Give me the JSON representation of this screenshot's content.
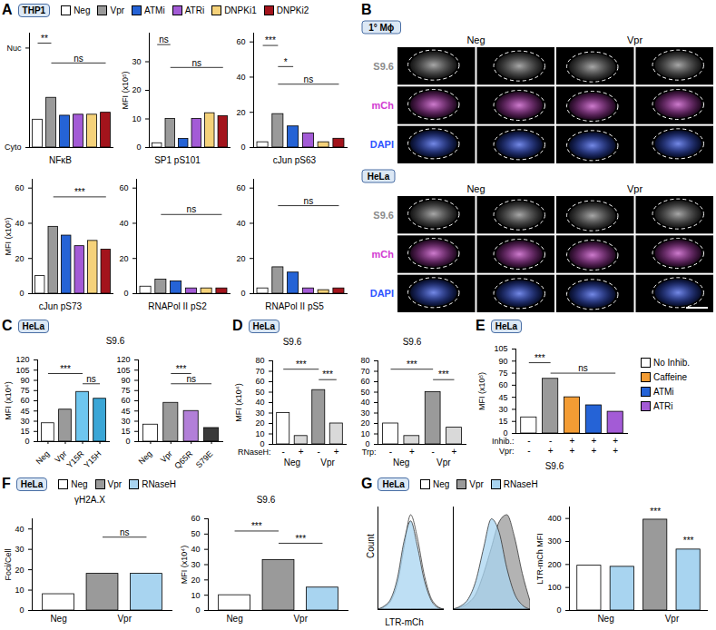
{
  "chart_data": [
    {
      "panel": "A",
      "type": "bar",
      "tag": "THP1",
      "legend": "top",
      "legend_items": [
        {
          "name": "Neg",
          "color": "#ffffff"
        },
        {
          "name": "Vpr",
          "color": "#9a9a9a"
        },
        {
          "name": "ATMi",
          "color": "#2563d6"
        },
        {
          "name": "ATRi",
          "color": "#a35bd6"
        },
        {
          "name": "DNPKi1",
          "color": "#f5d27a"
        },
        {
          "name": "DNPKi2",
          "color": "#a3141c"
        }
      ],
      "charts": [
        {
          "type": "bar",
          "xlabel": "NFκB",
          "tick_labels": "y",
          "values": [
            0.28,
            0.5,
            0.32,
            0.33,
            0.33,
            0.35
          ],
          "ylim": [
            0,
            1.15
          ],
          "yticks": [
            {
              "value": 0,
              "label": "Cyto"
            },
            {
              "value": 1,
              "label": "Nuc"
            }
          ],
          "annotations": [
            {
              "text": "**",
              "y": 1.05,
              "from": 0,
              "to": 1
            },
            {
              "text": "ns",
              "y": 0.85,
              "from": 1,
              "to": 5
            }
          ]
        },
        {
          "type": "bar",
          "xlabel": "SP1 pS101",
          "ylabel": "MFI (x10⁵)",
          "tick_labels": "y",
          "values": [
            1.5,
            10,
            3,
            10,
            12,
            11
          ],
          "ylim": [
            0,
            40
          ],
          "yticks": [
            0,
            10,
            20,
            30
          ],
          "annotations": [
            {
              "text": "ns",
              "y": 36,
              "from": 0,
              "to": 1
            },
            {
              "text": "ns",
              "y": 28,
              "from": 1,
              "to": 5
            }
          ]
        },
        {
          "type": "bar",
          "xlabel": "cJun pS63",
          "tick_labels": "y",
          "values": [
            3,
            19,
            12,
            8,
            3,
            5
          ],
          "ylim": [
            0,
            65
          ],
          "yticks": [
            0,
            20,
            40,
            60
          ],
          "annotations": [
            {
              "text": "***",
              "y": 58,
              "from": 0,
              "to": 1
            },
            {
              "text": "*",
              "y": 46,
              "from": 1,
              "to": 2
            },
            {
              "text": "ns",
              "y": 36,
              "from": 1,
              "to": 5
            }
          ]
        },
        {
          "type": "bar",
          "xlabel": "cJun pS73",
          "ylabel": "MFI (x10⁵)",
          "tick_labels": "y",
          "values": [
            10,
            38,
            33,
            27,
            30,
            25
          ],
          "ylim": [
            0,
            65
          ],
          "yticks": [
            0,
            20,
            40,
            60
          ],
          "annotations": [
            {
              "text": "***",
              "y": 55,
              "from": 1,
              "to": 5
            }
          ]
        },
        {
          "type": "bar",
          "xlabel": "RNAPol II pS2",
          "tick_labels": "y",
          "values": [
            4,
            8,
            7,
            3,
            3,
            3
          ],
          "ylim": [
            0,
            65
          ],
          "yticks": [
            0,
            20,
            40,
            60
          ],
          "annotations": [
            {
              "text": "ns",
              "y": 45,
              "from": 1,
              "to": 5
            }
          ]
        },
        {
          "type": "bar",
          "xlabel": "RNAPol II pS5",
          "tick_labels": "y",
          "values": [
            3,
            15,
            12,
            3,
            2,
            3
          ],
          "ylim": [
            0,
            65
          ],
          "yticks": [
            0,
            20,
            40,
            60
          ],
          "annotations": [
            {
              "text": "ns",
              "y": 50,
              "from": 1,
              "to": 5
            }
          ]
        }
      ]
    },
    {
      "panel": "B",
      "type": "image",
      "blocks": [
        {
          "tag": "1° Mϕ",
          "columns": [
            "Neg",
            "Vpr"
          ],
          "rows": [
            "S9.6",
            "mCh",
            "DAPI"
          ],
          "colors": [
            "#8c8c8c",
            "#d23cd2",
            "#2f55ff"
          ]
        },
        {
          "tag": "HeLa",
          "columns": [
            "Neg",
            "Vpr"
          ],
          "rows": [
            "S9.6",
            "mCh",
            "DAPI"
          ],
          "colors": [
            "#8c8c8c",
            "#d23cd2",
            "#2f55ff"
          ]
        }
      ]
    },
    {
      "panel": "C",
      "type": "bar",
      "tag": "HeLa",
      "title": "S9.6",
      "charts": [
        {
          "type": "bar",
          "ylabel": "MFI (x10⁴)",
          "categories": [
            "Neg",
            "Vpr",
            "Y15R",
            "Y15H"
          ],
          "colors": [
            "#ffffff",
            "#9a9a9a",
            "#6ec6ef",
            "#3aa6d6"
          ],
          "values": [
            27,
            47,
            73,
            63
          ],
          "ylim": [
            0,
            120
          ],
          "yticks": [
            0,
            15,
            30,
            45,
            60,
            75,
            90,
            105,
            120
          ],
          "annotations": [
            {
              "text": "***",
              "y": 100,
              "from": 0,
              "to": 2
            },
            {
              "text": "ns",
              "y": 85,
              "from": 2,
              "to": 3
            }
          ]
        },
        {
          "type": "bar",
          "categories": [
            "Neg",
            "Vpr",
            "Q65R",
            "S79E"
          ],
          "colors": [
            "#ffffff",
            "#9a9a9a",
            "#b27fd8",
            "#3a3a3a"
          ],
          "values": [
            25,
            57,
            45,
            20
          ],
          "ylim": [
            0,
            120
          ],
          "yticks": [
            0,
            15,
            30,
            45,
            60,
            75,
            90,
            105,
            120
          ],
          "annotations": [
            {
              "text": "***",
              "y": 100,
              "from": 1,
              "to": 2
            },
            {
              "text": "ns",
              "y": 85,
              "from": 1,
              "to": 3
            }
          ]
        }
      ]
    },
    {
      "panel": "D",
      "type": "bar",
      "tag": "HeLa",
      "charts": [
        {
          "type": "bar",
          "title": "S9.6",
          "ylabel": "MFI (x10⁴)",
          "values": [
            30,
            8,
            52,
            20
          ],
          "colors": [
            "#ffffff",
            "#d9d9d9",
            "#9a9a9a",
            "#d9d9d9"
          ],
          "ylim": [
            0,
            80
          ],
          "yticks": [
            0,
            10,
            20,
            30,
            40,
            50,
            60,
            70,
            80
          ],
          "xrows": [
            {
              "label": "RNaseH:",
              "values": [
                "-",
                "+",
                "-",
                "+"
              ]
            }
          ],
          "groups": [
            {
              "label": "Neg",
              "span": 2
            },
            {
              "label": "Vpr",
              "span": 2
            }
          ],
          "annotations": [
            {
              "text": "***",
              "y": 72,
              "from": 0,
              "to": 2
            },
            {
              "text": "***",
              "y": 62,
              "from": 2,
              "to": 3
            }
          ]
        },
        {
          "type": "bar",
          "title": "S9.6",
          "values": [
            20,
            8,
            50,
            16
          ],
          "colors": [
            "#ffffff",
            "#d9d9d9",
            "#9a9a9a",
            "#d9d9d9"
          ],
          "ylim": [
            0,
            80
          ],
          "yticks": [
            0,
            10,
            20,
            30,
            40,
            50,
            60,
            70,
            80
          ],
          "xrows": [
            {
              "label": "Trp:",
              "values": [
                "-",
                "+",
                "-",
                "+"
              ]
            }
          ],
          "groups": [
            {
              "label": "Neg",
              "span": 2
            },
            {
              "label": "Vpr",
              "span": 2
            }
          ],
          "annotations": [
            {
              "text": "***",
              "y": 72,
              "from": 0,
              "to": 2
            },
            {
              "text": "***",
              "y": 62,
              "from": 2,
              "to": 3
            }
          ]
        }
      ]
    },
    {
      "panel": "E",
      "type": "bar",
      "tag": "HeLa",
      "legend": "right",
      "legend_items": [
        {
          "name": "No Inhib.",
          "color": "#ffffff"
        },
        {
          "name": "Caffeine",
          "color": "#f39c34"
        },
        {
          "name": "ATMi",
          "color": "#2563d6"
        },
        {
          "name": "ATRi",
          "color": "#a35bd6"
        }
      ],
      "charts": [
        {
          "type": "bar",
          "xlabel": "S9.6",
          "ylabel": "MFI (x10⁵)",
          "values": [
            20,
            68,
            45,
            35,
            27
          ],
          "colors": [
            "#ffffff",
            "#9a9a9a",
            "#f39c34",
            "#2563d6",
            "#a35bd6"
          ],
          "ylim": [
            0,
            105
          ],
          "yticks": [
            0,
            15,
            30,
            45,
            60,
            75,
            90,
            105
          ],
          "xrows": [
            {
              "label": "Inhib.:",
              "values": [
                "-",
                "-",
                "+",
                "+",
                "+"
              ]
            },
            {
              "label": "Vpr:",
              "values": [
                "-",
                "+",
                "+",
                "+",
                "+"
              ]
            }
          ],
          "annotations": [
            {
              "text": "***",
              "y": 88,
              "from": 0,
              "to": 1
            },
            {
              "text": "ns",
              "y": 75,
              "from": 1,
              "to": 4
            }
          ]
        }
      ]
    },
    {
      "panel": "F",
      "type": "bar",
      "tag": "HeLa",
      "legend": "top",
      "legend_items": [
        {
          "name": "Neg",
          "color": "#ffffff"
        },
        {
          "name": "Vpr",
          "color": "#9a9a9a"
        },
        {
          "name": "RNaseH",
          "color": "#a8d4f0"
        }
      ],
      "charts": [
        {
          "type": "bar",
          "title": "γH2A.X",
          "ylabel": "Foci/Cell",
          "values": [
            8,
            18,
            18
          ],
          "colors": [
            "#ffffff",
            "#9a9a9a",
            "#a8d4f0"
          ],
          "ylim": [
            0,
            45
          ],
          "yticks": [
            0,
            10,
            20,
            30,
            40
          ],
          "groups": [
            {
              "label": "Neg",
              "span": 1
            },
            {
              "label": "Vpr",
              "span": 2
            }
          ],
          "annotations": [
            {
              "text": "ns",
              "y": 36,
              "from": 1,
              "to": 2
            }
          ]
        },
        {
          "type": "bar",
          "title": "S9.6",
          "ylabel": "MFI (x10⁴)",
          "values": [
            10,
            33,
            15
          ],
          "colors": [
            "#ffffff",
            "#9a9a9a",
            "#a8d4f0"
          ],
          "ylim": [
            0,
            60
          ],
          "yticks": [
            0,
            10,
            20,
            30,
            40,
            50,
            60
          ],
          "groups": [
            {
              "label": "Neg",
              "span": 1
            },
            {
              "label": "Vpr",
              "span": 2
            }
          ],
          "annotations": [
            {
              "text": "***",
              "y": 52,
              "from": 0,
              "to": 1
            },
            {
              "text": "***",
              "y": 44,
              "from": 1,
              "to": 2
            }
          ]
        }
      ]
    },
    {
      "panel": "G",
      "type": "mixed",
      "tag": "HeLa",
      "legend": "top",
      "legend_items": [
        {
          "name": "Neg",
          "color": "#ffffff"
        },
        {
          "name": "Vpr",
          "color": "#9a9a9a"
        },
        {
          "name": "RNaseH",
          "color": "#a8d4f0"
        }
      ],
      "charts": [
        {
          "type": "area",
          "xlabel": "LTR-mCh",
          "ylabel": "Count",
          "tick_labels": false,
          "xlim": [
            0,
            10
          ],
          "ylim": [
            0,
            100
          ],
          "x": [
            0,
            1,
            2,
            3,
            4,
            5,
            6,
            7,
            8,
            9,
            10
          ],
          "series": [
            {
              "name": "Neg",
              "values": [
                0,
                2,
                8,
                25,
                60,
                92,
                70,
                35,
                12,
                3,
                0
              ]
            },
            {
              "name": "RNaseH",
              "values": [
                0,
                3,
                10,
                30,
                66,
                86,
                62,
                30,
                10,
                2,
                0
              ]
            }
          ]
        },
        {
          "type": "area",
          "tick_labels": false,
          "xlim": [
            0,
            10
          ],
          "ylim": [
            0,
            100
          ],
          "x": [
            0,
            1,
            2,
            3,
            4,
            5,
            6,
            7,
            8,
            9,
            10
          ],
          "series": [
            {
              "name": "Vpr",
              "values": [
                0,
                2,
                6,
                15,
                35,
                60,
                85,
                92,
                70,
                35,
                8
              ]
            },
            {
              "name": "RNaseH",
              "values": [
                0,
                3,
                10,
                28,
                60,
                88,
                75,
                40,
                15,
                4,
                0
              ]
            }
          ]
        },
        {
          "type": "bar",
          "ylabel": "LTR-mCh MFI",
          "values": [
            195,
            190,
            395,
            265
          ],
          "colors": [
            "#ffffff",
            "#a8d4f0",
            "#9a9a9a",
            "#a8d4f0"
          ],
          "ylim": [
            0,
            450
          ],
          "yticks": [
            0,
            100,
            200,
            300,
            400
          ],
          "groups": [
            {
              "label": "Neg",
              "span": 2
            },
            {
              "label": "Vpr",
              "span": 2
            }
          ],
          "annotations": [
            {
              "text": "***",
              "y": 410,
              "from": 2,
              "to": 2
            },
            {
              "text": "***",
              "y": 285,
              "from": 3,
              "to": 3
            }
          ]
        }
      ]
    }
  ]
}
